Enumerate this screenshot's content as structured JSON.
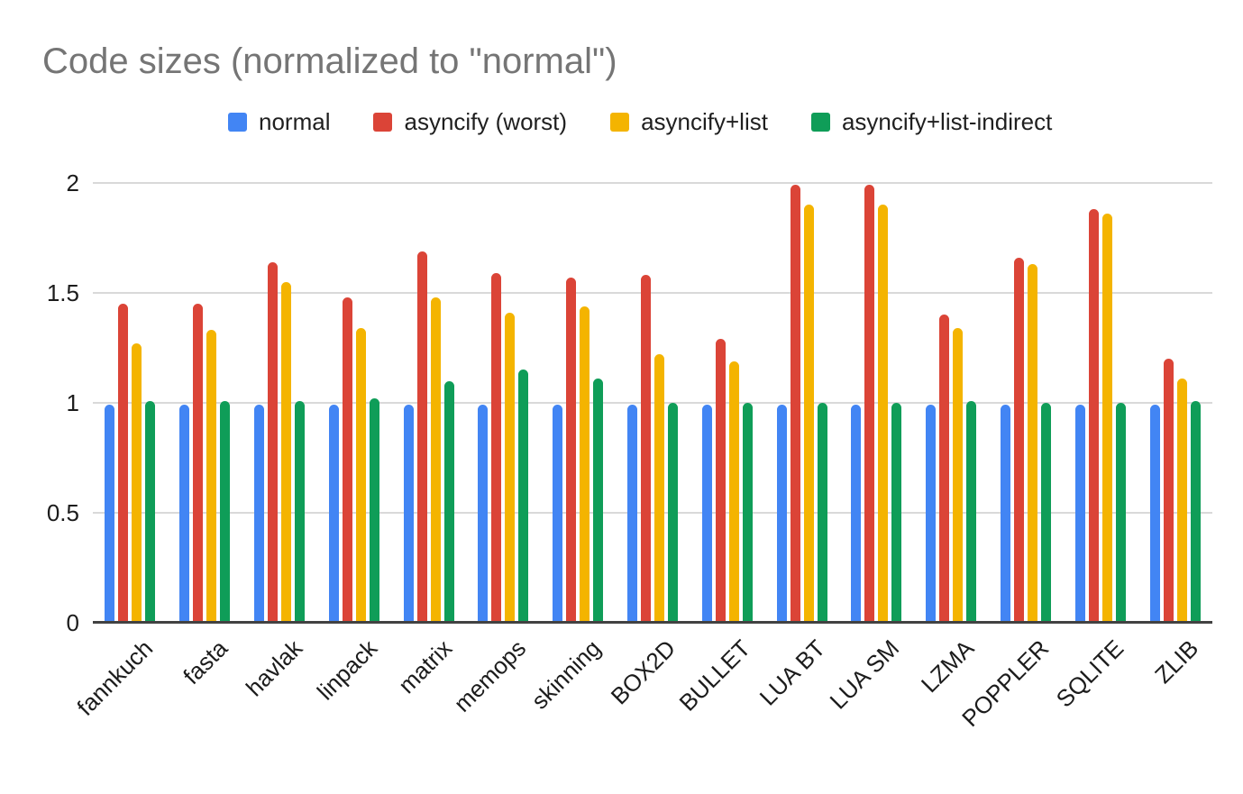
{
  "title": "Code sizes (normalized to \"normal\")",
  "chart_data": {
    "type": "bar",
    "title": "Code sizes (normalized to \"normal\")",
    "categories": [
      "fannkuch",
      "fasta",
      "havlak",
      "linpack",
      "matrix",
      "memops",
      "skinning",
      "BOX2D",
      "BULLET",
      "LUA BT",
      "LUA SM",
      "LZMA",
      "POPPLER",
      "SQLITE",
      "ZLIB"
    ],
    "series": [
      {
        "name": "normal",
        "color": "#4285F4",
        "values": [
          0.99,
          0.99,
          0.99,
          0.99,
          0.99,
          0.99,
          0.99,
          0.99,
          0.99,
          0.99,
          0.99,
          0.99,
          0.99,
          0.99,
          0.99
        ]
      },
      {
        "name": "asyncify (worst)",
        "color": "#DB4437",
        "values": [
          1.45,
          1.45,
          1.64,
          1.48,
          1.69,
          1.59,
          1.57,
          1.58,
          1.29,
          1.99,
          1.99,
          1.4,
          1.66,
          1.88,
          1.2
        ]
      },
      {
        "name": "asyncify+list",
        "color": "#F4B400",
        "values": [
          1.27,
          1.33,
          1.55,
          1.34,
          1.48,
          1.41,
          1.44,
          1.22,
          1.19,
          1.9,
          1.9,
          1.34,
          1.63,
          1.86,
          1.11
        ]
      },
      {
        "name": "asyncify+list-indirect",
        "color": "#0F9D58",
        "values": [
          1.01,
          1.01,
          1.01,
          1.02,
          1.1,
          1.15,
          1.11,
          1.0,
          1.0,
          1.0,
          1.0,
          1.01,
          1.0,
          1.0,
          1.01
        ]
      }
    ],
    "xlabel": "",
    "ylabel": "",
    "ylim": [
      0,
      2.05
    ],
    "yticks": [
      0,
      0.5,
      1,
      1.5,
      2
    ],
    "ytick_labels": [
      "0",
      "0.5",
      "1",
      "1.5",
      "2"
    ],
    "grid": true,
    "legend_position": "top"
  },
  "layout_colors": {
    "title_text": "#757575",
    "axis_text": "#1c1c1c",
    "gridline": "#d9d9d9",
    "axis_line": "#424242",
    "background": "#ffffff"
  }
}
